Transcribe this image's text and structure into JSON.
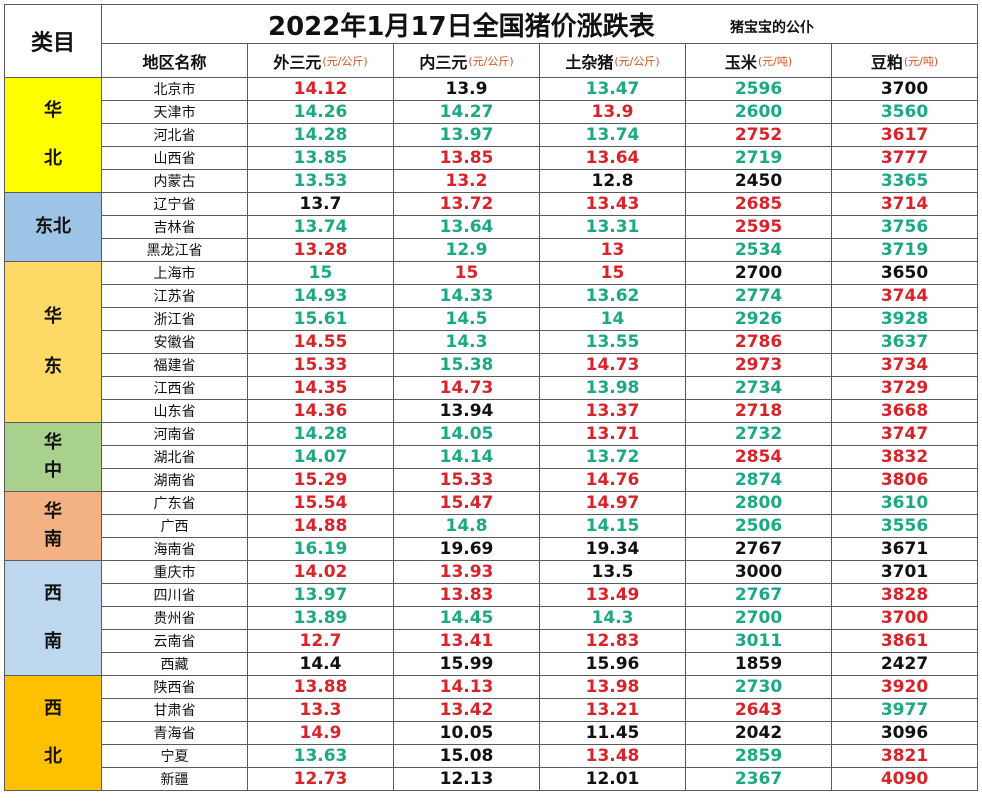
{
  "title": "2022年1月17日全国猪价涨跌表",
  "subtitle": "猪宝宝的公仆",
  "category_label": "类目",
  "header": {
    "region_name": "地区名称",
    "columns": [
      {
        "name": "外三元",
        "unit": "(元/公斤)"
      },
      {
        "name": "内三元",
        "unit": "(元/公斤)"
      },
      {
        "name": "土杂猪",
        "unit": "(元/公斤)"
      },
      {
        "name": "玉米",
        "unit": "(元/吨)"
      },
      {
        "name": "豆粕",
        "unit": "(元/吨)"
      }
    ]
  },
  "colors": {
    "red": "#d8232a",
    "green": "#1aa983",
    "black": "#111111"
  },
  "regions": [
    {
      "label": "华北",
      "lines": [
        "华",
        "北"
      ],
      "color": "#ffff00",
      "start": 0,
      "count": 5
    },
    {
      "label": "东北",
      "lines": [
        "东北"
      ],
      "color": "#9dc3e6",
      "start": 5,
      "count": 3
    },
    {
      "label": "华东",
      "lines": [
        "华",
        "东"
      ],
      "color": "#ffd966",
      "start": 8,
      "count": 7
    },
    {
      "label": "华中",
      "lines": [
        "华",
        "中"
      ],
      "color": "#a9d18e",
      "start": 15,
      "count": 3
    },
    {
      "label": "华南",
      "lines": [
        "华",
        "南"
      ],
      "color": "#f4b183",
      "start": 18,
      "count": 3
    },
    {
      "label": "西南",
      "lines": [
        "西",
        "南"
      ],
      "color": "#bdd7ee",
      "start": 21,
      "count": 5
    },
    {
      "label": "西北",
      "lines": [
        "西",
        "北"
      ],
      "color": "#ffc000",
      "start": 26,
      "count": 5
    }
  ],
  "rows": [
    {
      "name": "北京市",
      "values": [
        "14.12",
        "13.9",
        "13.47",
        "2596",
        "3700"
      ],
      "colors": [
        "red",
        "black",
        "green",
        "green",
        "black"
      ]
    },
    {
      "name": "天津市",
      "values": [
        "14.26",
        "14.27",
        "13.9",
        "2600",
        "3560"
      ],
      "colors": [
        "green",
        "green",
        "red",
        "green",
        "green"
      ]
    },
    {
      "name": "河北省",
      "values": [
        "14.28",
        "13.97",
        "13.74",
        "2752",
        "3617"
      ],
      "colors": [
        "green",
        "green",
        "green",
        "red",
        "red"
      ]
    },
    {
      "name": "山西省",
      "values": [
        "13.85",
        "13.85",
        "13.64",
        "2719",
        "3777"
      ],
      "colors": [
        "green",
        "red",
        "red",
        "green",
        "red"
      ]
    },
    {
      "name": "内蒙古",
      "values": [
        "13.53",
        "13.2",
        "12.8",
        "2450",
        "3365"
      ],
      "colors": [
        "green",
        "red",
        "black",
        "black",
        "green"
      ]
    },
    {
      "name": "辽宁省",
      "values": [
        "13.7",
        "13.72",
        "13.43",
        "2685",
        "3714"
      ],
      "colors": [
        "black",
        "red",
        "red",
        "red",
        "red"
      ]
    },
    {
      "name": "吉林省",
      "values": [
        "13.74",
        "13.64",
        "13.31",
        "2595",
        "3756"
      ],
      "colors": [
        "green",
        "green",
        "green",
        "red",
        "green"
      ]
    },
    {
      "name": "黑龙江省",
      "values": [
        "13.28",
        "12.9",
        "13",
        "2534",
        "3719"
      ],
      "colors": [
        "red",
        "green",
        "red",
        "green",
        "green"
      ]
    },
    {
      "name": "上海市",
      "values": [
        "15",
        "15",
        "15",
        "2700",
        "3650"
      ],
      "colors": [
        "green",
        "red",
        "red",
        "black",
        "black"
      ]
    },
    {
      "name": "江苏省",
      "values": [
        "14.93",
        "14.33",
        "13.62",
        "2774",
        "3744"
      ],
      "colors": [
        "green",
        "green",
        "green",
        "green",
        "red"
      ]
    },
    {
      "name": "浙江省",
      "values": [
        "15.61",
        "14.5",
        "14",
        "2926",
        "3928"
      ],
      "colors": [
        "green",
        "green",
        "green",
        "green",
        "green"
      ]
    },
    {
      "name": "安徽省",
      "values": [
        "14.55",
        "14.3",
        "13.55",
        "2786",
        "3637"
      ],
      "colors": [
        "red",
        "green",
        "green",
        "red",
        "green"
      ]
    },
    {
      "name": "福建省",
      "values": [
        "15.33",
        "15.38",
        "14.73",
        "2973",
        "3734"
      ],
      "colors": [
        "red",
        "green",
        "red",
        "red",
        "red"
      ]
    },
    {
      "name": "江西省",
      "values": [
        "14.35",
        "14.73",
        "13.98",
        "2734",
        "3729"
      ],
      "colors": [
        "red",
        "red",
        "green",
        "green",
        "red"
      ]
    },
    {
      "name": "山东省",
      "values": [
        "14.36",
        "13.94",
        "13.37",
        "2718",
        "3668"
      ],
      "colors": [
        "red",
        "black",
        "red",
        "red",
        "red"
      ]
    },
    {
      "name": "河南省",
      "values": [
        "14.28",
        "14.05",
        "13.71",
        "2732",
        "3747"
      ],
      "colors": [
        "green",
        "green",
        "red",
        "green",
        "red"
      ]
    },
    {
      "name": "湖北省",
      "values": [
        "14.07",
        "14.14",
        "13.72",
        "2854",
        "3832"
      ],
      "colors": [
        "green",
        "green",
        "green",
        "red",
        "red"
      ]
    },
    {
      "name": "湖南省",
      "values": [
        "15.29",
        "15.33",
        "14.76",
        "2874",
        "3806"
      ],
      "colors": [
        "red",
        "red",
        "red",
        "green",
        "red"
      ]
    },
    {
      "name": "广东省",
      "values": [
        "15.54",
        "15.47",
        "14.97",
        "2800",
        "3610"
      ],
      "colors": [
        "red",
        "red",
        "red",
        "green",
        "green"
      ]
    },
    {
      "name": "广西",
      "values": [
        "14.88",
        "14.8",
        "14.15",
        "2506",
        "3556"
      ],
      "colors": [
        "red",
        "green",
        "green",
        "green",
        "green"
      ]
    },
    {
      "name": "海南省",
      "values": [
        "16.19",
        "19.69",
        "19.34",
        "2767",
        "3671"
      ],
      "colors": [
        "green",
        "black",
        "black",
        "black",
        "black"
      ]
    },
    {
      "name": "重庆市",
      "values": [
        "14.02",
        "13.93",
        "13.5",
        "3000",
        "3701"
      ],
      "colors": [
        "red",
        "red",
        "black",
        "black",
        "black"
      ]
    },
    {
      "name": "四川省",
      "values": [
        "13.97",
        "13.83",
        "13.49",
        "2767",
        "3828"
      ],
      "colors": [
        "green",
        "red",
        "red",
        "green",
        "red"
      ]
    },
    {
      "name": "贵州省",
      "values": [
        "13.89",
        "14.45",
        "14.3",
        "2700",
        "3700"
      ],
      "colors": [
        "green",
        "green",
        "green",
        "green",
        "red"
      ]
    },
    {
      "name": "云南省",
      "values": [
        "12.7",
        "13.41",
        "12.83",
        "3011",
        "3861"
      ],
      "colors": [
        "red",
        "red",
        "red",
        "green",
        "red"
      ]
    },
    {
      "name": "西藏",
      "values": [
        "14.4",
        "15.99",
        "15.96",
        "1859",
        "2427"
      ],
      "colors": [
        "black",
        "black",
        "black",
        "black",
        "black"
      ]
    },
    {
      "name": "陕西省",
      "values": [
        "13.88",
        "14.13",
        "13.98",
        "2730",
        "3920"
      ],
      "colors": [
        "red",
        "red",
        "red",
        "green",
        "red"
      ]
    },
    {
      "name": "甘肃省",
      "values": [
        "13.3",
        "13.42",
        "13.21",
        "2643",
        "3977"
      ],
      "colors": [
        "red",
        "red",
        "red",
        "red",
        "green"
      ]
    },
    {
      "name": "青海省",
      "values": [
        "14.9",
        "10.05",
        "11.45",
        "2042",
        "3096"
      ],
      "colors": [
        "red",
        "black",
        "black",
        "black",
        "black"
      ]
    },
    {
      "name": "宁夏",
      "values": [
        "13.63",
        "15.08",
        "13.48",
        "2859",
        "3821"
      ],
      "colors": [
        "green",
        "black",
        "red",
        "green",
        "red"
      ]
    },
    {
      "name": "新疆",
      "values": [
        "12.73",
        "12.13",
        "12.01",
        "2367",
        "4090"
      ],
      "colors": [
        "red",
        "black",
        "black",
        "green",
        "red"
      ]
    }
  ]
}
